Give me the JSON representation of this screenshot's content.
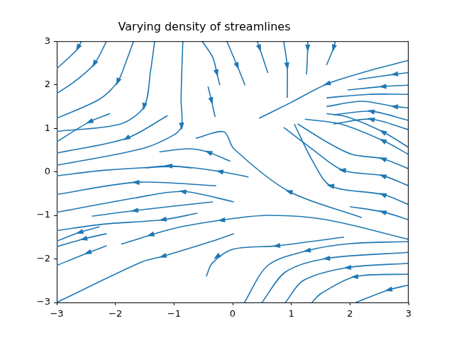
{
  "chart_data": {
    "type": "streamplot",
    "title": "Varying density of streamlines",
    "color": "#1f77b4",
    "grid": false,
    "xlim": [
      -3,
      3
    ],
    "xticks": [
      {
        "value": -3,
        "label": "−3"
      },
      {
        "value": -2,
        "label": "−2"
      },
      {
        "value": -1,
        "label": "−1"
      },
      0,
      1,
      2,
      3
    ],
    "ylim": [
      -3,
      3
    ],
    "yticks": [
      {
        "value": -3,
        "label": "−3"
      },
      {
        "value": -2,
        "label": "−2"
      },
      {
        "value": -1,
        "label": "−1"
      },
      0,
      1,
      2,
      3
    ],
    "series": [
      {
        "points": [
          [
            -2.58,
            3
          ],
          [
            -2.66,
            2.8
          ],
          [
            -3,
            2.37
          ]
        ],
        "arrows": [
          [
            -2.64,
            2.85
          ]
        ]
      },
      {
        "points": [
          [
            -2.15,
            3
          ],
          [
            -2.36,
            2.48
          ],
          [
            -2.7,
            2.07
          ],
          [
            -3,
            1.8
          ]
        ],
        "arrows": [
          [
            -2.36,
            2.48
          ]
        ]
      },
      {
        "points": [
          [
            -1.69,
            3
          ],
          [
            -1.81,
            2.56
          ],
          [
            -1.96,
            2.07
          ],
          [
            -2.27,
            1.67
          ],
          [
            -3,
            1.23
          ]
        ],
        "arrows": [
          [
            -1.96,
            2.07
          ]
        ]
      },
      {
        "points": [
          [
            -1.33,
            3
          ],
          [
            -1.4,
            2.32
          ],
          [
            -1.51,
            1.5
          ],
          [
            -1.91,
            1.1
          ],
          [
            -3,
            0.93
          ]
        ],
        "arrows": [
          [
            -1.51,
            1.5
          ]
        ]
      },
      {
        "points": [
          [
            -2.09,
            1.34
          ],
          [
            -2.44,
            1.15
          ],
          [
            -3,
            0.69
          ]
        ],
        "arrows": [
          [
            -2.44,
            1.15
          ]
        ]
      },
      {
        "points": [
          [
            -1.11,
            1.29
          ],
          [
            -1.81,
            0.77
          ],
          [
            -3,
            0.43
          ]
        ],
        "arrows": [
          [
            -1.81,
            0.77
          ]
        ]
      },
      {
        "points": [
          [
            -0.85,
            3
          ],
          [
            -0.88,
            1.67
          ],
          [
            -0.87,
            1.05
          ],
          [
            -1.0,
            0.85
          ],
          [
            -1.55,
            0.53
          ],
          [
            -3,
            0.15
          ]
        ],
        "arrows": [
          [
            -0.87,
            1.05
          ]
        ]
      },
      {
        "points": [
          [
            -0.52,
            3
          ],
          [
            -0.34,
            2.63
          ],
          [
            -0.27,
            2.27
          ],
          [
            -0.22,
            1.99
          ]
        ],
        "arrows": [
          [
            -0.27,
            2.27
          ]
        ]
      },
      {
        "points": [
          [
            -0.42,
            1.96
          ],
          [
            -0.36,
            1.63
          ],
          [
            -0.3,
            1.26
          ]
        ],
        "arrows": [
          [
            -0.36,
            1.63
          ]
        ]
      },
      {
        "points": [
          [
            -0.1,
            3
          ],
          [
            0.08,
            2.43
          ],
          [
            0.21,
            1.99
          ]
        ],
        "arrows": [
          [
            0.08,
            2.43
          ]
        ]
      },
      {
        "points": [
          [
            0.42,
            3
          ],
          [
            0.46,
            2.84
          ],
          [
            0.6,
            2.27
          ]
        ],
        "arrows": [
          [
            0.46,
            2.84
          ]
        ]
      },
      {
        "points": [
          [
            0.87,
            3
          ],
          [
            0.93,
            2.43
          ],
          [
            0.93,
            1.7
          ]
        ],
        "arrows": [
          [
            0.93,
            2.43
          ]
        ]
      },
      {
        "points": [
          [
            1.28,
            3
          ],
          [
            1.28,
            2.84
          ],
          [
            1.26,
            2.24
          ]
        ],
        "arrows": [
          [
            1.28,
            2.84
          ]
        ]
      },
      {
        "points": [
          [
            1.75,
            3
          ],
          [
            1.72,
            2.84
          ],
          [
            1.6,
            2.45
          ]
        ],
        "arrows": [
          [
            1.72,
            2.84
          ]
        ]
      },
      {
        "points": [
          [
            3,
            2.56
          ],
          [
            2.32,
            2.32
          ],
          [
            1.61,
            2.02
          ],
          [
            0.99,
            1.59
          ],
          [
            0.45,
            1.23
          ]
        ],
        "arrows": [
          [
            1.61,
            2.02
          ]
        ]
      },
      {
        "points": [
          [
            3,
            2.28
          ],
          [
            2.76,
            2.24
          ],
          [
            2.14,
            2.12
          ]
        ],
        "arrows": [
          [
            2.76,
            2.24
          ]
        ]
      },
      {
        "points": [
          [
            3,
            1.99
          ],
          [
            2.56,
            1.96
          ],
          [
            1.96,
            1.88
          ]
        ],
        "arrows": [
          [
            2.56,
            1.96
          ]
        ]
      },
      {
        "points": [
          [
            3,
            1.78
          ],
          [
            2.32,
            1.78
          ],
          [
            1.6,
            1.7
          ]
        ],
        "arrows": []
      },
      {
        "points": [
          [
            3,
            1.47
          ],
          [
            2.76,
            1.5
          ],
          [
            2.2,
            1.62
          ],
          [
            1.6,
            1.5
          ]
        ],
        "arrows": [
          [
            2.76,
            1.5
          ]
        ]
      },
      {
        "points": [
          [
            3,
            1.18
          ],
          [
            2.36,
            1.39
          ],
          [
            1.72,
            1.31
          ]
        ],
        "arrows": [
          [
            2.36,
            1.39
          ]
        ]
      },
      {
        "points": [
          [
            3,
            0.97
          ],
          [
            2.36,
            1.21
          ],
          [
            1.72,
            1.1
          ]
        ],
        "arrows": [
          [
            2.36,
            1.21
          ]
        ]
      },
      {
        "points": [
          [
            3,
            0.56
          ],
          [
            2.56,
            0.92
          ],
          [
            1.96,
            1.26
          ],
          [
            1.6,
            1.34
          ]
        ],
        "arrows": [
          [
            2.56,
            0.92
          ]
        ]
      },
      {
        "points": [
          [
            3,
            0.4
          ],
          [
            2.56,
            0.72
          ],
          [
            1.84,
            1.1
          ],
          [
            1.23,
            1.21
          ]
        ],
        "arrows": [
          [
            2.56,
            0.72
          ]
        ]
      },
      {
        "points": [
          [
            3,
            0.07
          ],
          [
            2.56,
            0.3
          ],
          [
            2.04,
            0.4
          ],
          [
            1.6,
            0.69
          ],
          [
            1.11,
            1.1
          ]
        ],
        "arrows": [
          [
            2.56,
            0.3
          ]
        ]
      },
      {
        "points": [
          [
            3,
            -0.32
          ],
          [
            2.56,
            -0.09
          ],
          [
            1.87,
            0.04
          ],
          [
            1.35,
            0.53
          ],
          [
            0.87,
            1.02
          ]
        ],
        "arrows": [
          [
            2.56,
            -0.09
          ],
          [
            1.87,
            0.04
          ]
        ]
      },
      {
        "points": [
          [
            3,
            -0.75
          ],
          [
            2.56,
            -0.52
          ],
          [
            1.67,
            -0.32
          ],
          [
            1.35,
            0.28
          ],
          [
            1.05,
            1.1
          ]
        ],
        "arrows": [
          [
            2.56,
            -0.52
          ],
          [
            1.67,
            -0.32
          ]
        ]
      },
      {
        "points": [
          [
            3,
            -1.1
          ],
          [
            2.56,
            -0.92
          ],
          [
            2.0,
            -0.8
          ]
        ],
        "arrows": [
          [
            2.56,
            -0.92
          ]
        ]
      },
      {
        "points": [
          [
            2.2,
            -1.05
          ],
          [
            0.96,
            -0.45
          ],
          [
            0.02,
            0.53
          ],
          [
            -0.15,
            0.92
          ],
          [
            -0.63,
            0.77
          ]
        ],
        "arrows": [
          [
            0.96,
            -0.45
          ]
        ]
      },
      {
        "points": [
          [
            -0.04,
            0.24
          ],
          [
            -0.41,
            0.45
          ],
          [
            -0.76,
            0.53
          ],
          [
            -1.25,
            0.46
          ]
        ],
        "arrows": [
          [
            -0.41,
            0.45
          ]
        ]
      },
      {
        "points": [
          [
            0.27,
            -0.12
          ],
          [
            -0.22,
            0.01
          ],
          [
            -0.94,
            0.12
          ],
          [
            -2.15,
            0.04
          ],
          [
            -3,
            -0.09
          ]
        ],
        "arrows": [
          [
            -0.22,
            0.01
          ]
        ]
      },
      {
        "points": [
          [
            -0.7,
            0.09
          ],
          [
            -1.09,
            0.14
          ],
          [
            -1.49,
            0.09
          ]
        ],
        "arrows": [
          [
            -1.09,
            0.14
          ]
        ]
      },
      {
        "points": [
          [
            -0.28,
            -0.32
          ],
          [
            -1.65,
            -0.24
          ],
          [
            -3,
            -0.52
          ]
        ],
        "arrows": [
          [
            -1.65,
            -0.24
          ]
        ]
      },
      {
        "points": [
          [
            0.02,
            -0.69
          ],
          [
            -0.85,
            -0.45
          ],
          [
            -1.67,
            -0.6
          ],
          [
            -3,
            -0.93
          ]
        ],
        "arrows": [
          [
            -0.85,
            -0.45
          ]
        ]
      },
      {
        "points": [
          [
            -0.34,
            -0.69
          ],
          [
            -1.67,
            -0.89
          ],
          [
            -2.4,
            -1.02
          ]
        ],
        "arrows": [
          [
            -1.67,
            -0.89
          ]
        ]
      },
      {
        "points": [
          [
            3,
            -1.55
          ],
          [
            1.6,
            -1.1
          ],
          [
            0.6,
            -1.0
          ],
          [
            -0.19,
            -1.11
          ],
          [
            -1.0,
            -1.3
          ],
          [
            -1.9,
            -1.66
          ]
        ],
        "arrows": [
          [
            -0.19,
            -1.11
          ],
          [
            -1.4,
            -1.45
          ]
        ]
      },
      {
        "points": [
          [
            -0.6,
            -0.95
          ],
          [
            -1.19,
            -1.1
          ],
          [
            -2.2,
            -1.2
          ],
          [
            -3,
            -1.35
          ]
        ],
        "arrows": [
          [
            -1.19,
            -1.1
          ]
        ]
      },
      {
        "points": [
          [
            -2.27,
            -1.26
          ],
          [
            -2.61,
            -1.39
          ],
          [
            -3,
            -1.59
          ]
        ],
        "arrows": [
          [
            -2.61,
            -1.39
          ]
        ]
      },
      {
        "points": [
          [
            -2.15,
            -1.42
          ],
          [
            -2.54,
            -1.54
          ],
          [
            -3,
            -1.72
          ]
        ],
        "arrows": [
          [
            -2.54,
            -1.54
          ]
        ]
      },
      {
        "points": [
          [
            -2.15,
            -1.7
          ],
          [
            -2.47,
            -1.86
          ],
          [
            -3,
            -2.15
          ]
        ],
        "arrows": [
          [
            -2.47,
            -1.86
          ]
        ]
      },
      {
        "points": [
          [
            0.02,
            -1.42
          ],
          [
            -0.34,
            -1.59
          ],
          [
            -1.19,
            -1.94
          ],
          [
            -1.55,
            -2.07
          ],
          [
            -3,
            -3
          ]
        ],
        "arrows": [
          [
            -1.19,
            -1.94
          ]
        ]
      },
      {
        "points": [
          [
            1.9,
            -1.5
          ],
          [
            0.75,
            -1.7
          ],
          [
            0.0,
            -1.78
          ],
          [
            -0.35,
            -2.1
          ],
          [
            -0.45,
            -2.4
          ]
        ],
        "arrows": [
          [
            0.75,
            -1.7
          ],
          [
            -0.27,
            -1.95
          ]
        ]
      },
      {
        "points": [
          [
            3,
            -1.6
          ],
          [
            2.0,
            -1.65
          ],
          [
            1.27,
            -1.81
          ],
          [
            0.6,
            -2.15
          ],
          [
            0.2,
            -3
          ]
        ],
        "arrows": [
          [
            1.27,
            -1.81
          ]
        ]
      },
      {
        "points": [
          [
            3,
            -1.85
          ],
          [
            1.6,
            -1.99
          ],
          [
            0.9,
            -2.3
          ],
          [
            0.5,
            -3
          ]
        ],
        "arrows": [
          [
            1.6,
            -1.99
          ]
        ]
      },
      {
        "points": [
          [
            3,
            -2.1
          ],
          [
            1.96,
            -2.2
          ],
          [
            1.2,
            -2.5
          ],
          [
            0.9,
            -3
          ]
        ],
        "arrows": [
          [
            1.96,
            -2.2
          ]
        ]
      },
      {
        "points": [
          [
            3,
            -2.35
          ],
          [
            2.08,
            -2.41
          ],
          [
            1.5,
            -2.8
          ],
          [
            1.35,
            -3
          ]
        ],
        "arrows": [
          [
            2.08,
            -2.41
          ]
        ]
      },
      {
        "points": [
          [
            3,
            -2.6
          ],
          [
            2.66,
            -2.71
          ],
          [
            2.1,
            -3
          ]
        ],
        "arrows": [
          [
            2.66,
            -2.71
          ]
        ]
      }
    ]
  }
}
